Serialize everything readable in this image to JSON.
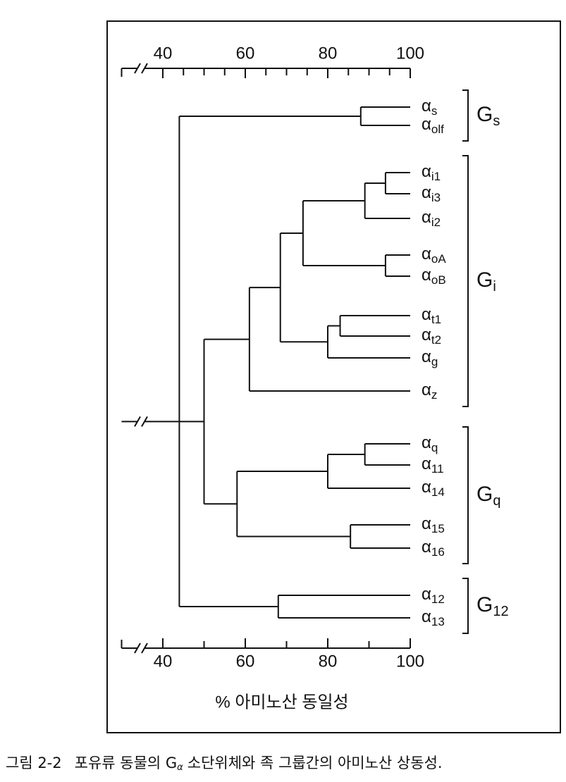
{
  "chart_data": {
    "type": "dendrogram",
    "xlabel": "% 아미노산 동일성",
    "xlim": [
      30,
      100
    ],
    "xticks": [
      40,
      60,
      80,
      100
    ],
    "top_minor_ticks": [
      45,
      50,
      55,
      65,
      70,
      75,
      85,
      90,
      95
    ],
    "bottom_minor_ticks": [
      50,
      70,
      90
    ],
    "leaves": [
      {
        "symbol": "α",
        "subscript": "s"
      },
      {
        "symbol": "α",
        "subscript": "olf"
      },
      {
        "symbol": "α",
        "subscript": "i1"
      },
      {
        "symbol": "α",
        "subscript": "i3"
      },
      {
        "symbol": "α",
        "subscript": "i2"
      },
      {
        "symbol": "α",
        "subscript": "oA"
      },
      {
        "symbol": "α",
        "subscript": "oB"
      },
      {
        "symbol": "α",
        "subscript": "t1"
      },
      {
        "symbol": "α",
        "subscript": "t2"
      },
      {
        "symbol": "α",
        "subscript": "g"
      },
      {
        "symbol": "α",
        "subscript": "z"
      },
      {
        "symbol": "α",
        "subscript": "q"
      },
      {
        "symbol": "α",
        "subscript": "11"
      },
      {
        "symbol": "α",
        "subscript": "14"
      },
      {
        "symbol": "α",
        "subscript": "15"
      },
      {
        "symbol": "α",
        "subscript": "16"
      },
      {
        "symbol": "α",
        "subscript": "12"
      },
      {
        "symbol": "α",
        "subscript": "13"
      }
    ],
    "tree": {
      "height": 44,
      "children": [
        {
          "height": 88,
          "children": [
            0,
            1
          ]
        },
        {
          "height": 50,
          "children": [
            {
              "height": 61,
              "children": [
                {
                  "height": 68.5,
                  "children": [
                    {
                      "height": 74,
                      "children": [
                        {
                          "height": 89,
                          "children": [
                            {
                              "height": 94,
                              "children": [
                                2,
                                3
                              ]
                            },
                            4
                          ]
                        },
                        {
                          "height": 94,
                          "children": [
                            5,
                            6
                          ]
                        }
                      ]
                    },
                    {
                      "height": 80,
                      "children": [
                        {
                          "height": 83,
                          "children": [
                            7,
                            8
                          ]
                        },
                        9
                      ]
                    }
                  ]
                },
                10
              ]
            },
            {
              "height": 58,
              "children": [
                {
                  "height": 80,
                  "children": [
                    {
                      "height": 89,
                      "children": [
                        11,
                        12
                      ]
                    },
                    13
                  ]
                },
                {
                  "height": 85.5,
                  "children": [
                    14,
                    15
                  ]
                }
              ]
            }
          ]
        },
        {
          "height": 68,
          "children": [
            16,
            17
          ]
        }
      ]
    },
    "groups": [
      {
        "symbol": "G",
        "subscript": "s",
        "leaves": [
          0,
          1
        ]
      },
      {
        "symbol": "G",
        "subscript": "i",
        "leaves": [
          2,
          10
        ]
      },
      {
        "symbol": "G",
        "subscript": "q",
        "leaves": [
          11,
          15
        ]
      },
      {
        "symbol": "G",
        "subscript": "12",
        "leaves": [
          16,
          17
        ]
      }
    ],
    "caption": {
      "number": "그림 2-2",
      "before": "포유류 동물의 G",
      "sub": "α",
      "after": "소단위체와 족 그룹간의 아미노산 상동성."
    }
  }
}
